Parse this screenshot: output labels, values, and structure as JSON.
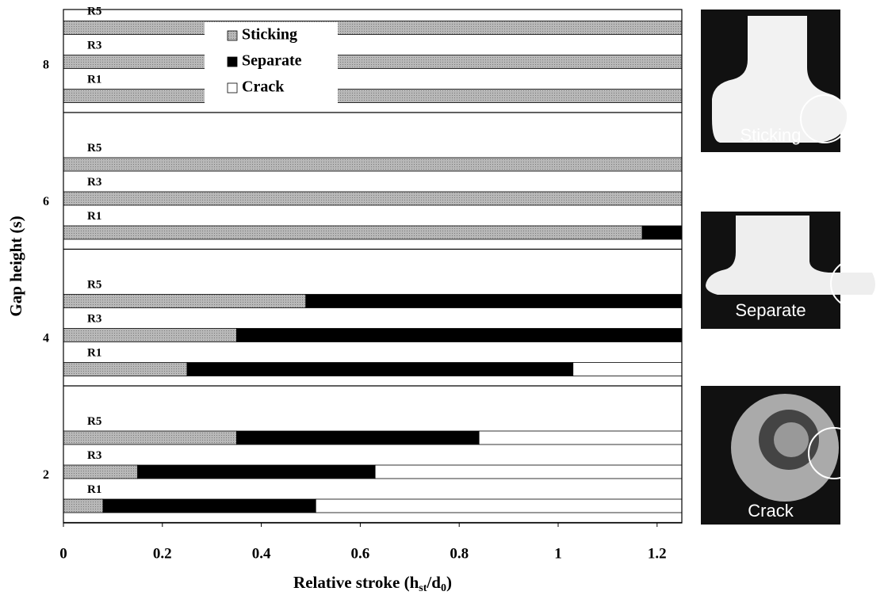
{
  "chart_data": {
    "type": "stacked-barh",
    "x_label": [
      "Relative stroke (h",
      "st",
      "/d",
      "0",
      ")"
    ],
    "y_label": "Gap height (s)",
    "categories": [
      "R5",
      "R3",
      "R1",
      "R5",
      "R3",
      "R1",
      "R5",
      "R3",
      "R1",
      "R5",
      "R3",
      "R1"
    ],
    "yticks": [
      8,
      6,
      4,
      2
    ],
    "series": [
      {
        "name": "Sticking",
        "color": "#a6a6a6",
        "values": [
          1.25,
          1.25,
          1.25,
          1.25,
          1.25,
          1.17,
          0.49,
          0.35,
          0.25,
          0.35,
          0.15,
          0.08
        ]
      },
      {
        "name": "Separate",
        "color": "#000000",
        "values": [
          0,
          0,
          0,
          0,
          0,
          0.08,
          0.76,
          0.9,
          0.78,
          0.49,
          0.48,
          0.43
        ]
      },
      {
        "name": "Crack",
        "color": "#ffffff",
        "values": [
          0,
          0,
          0,
          0,
          0,
          0,
          0,
          0,
          0.22,
          0.41,
          0.62,
          0.74
        ]
      }
    ],
    "xlim": [
      0,
      1.25
    ],
    "xticks": [
      0,
      0.2,
      0.4,
      0.6,
      0.8,
      1,
      1.2
    ],
    "panels": [
      "Sticking",
      "Separate",
      "Crack"
    ]
  }
}
